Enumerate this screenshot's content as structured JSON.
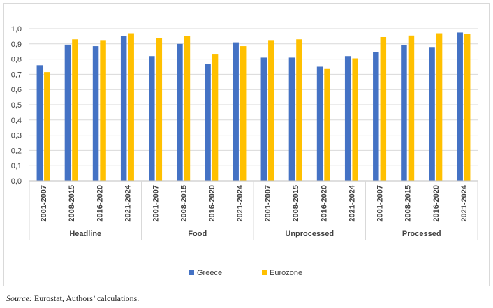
{
  "chart_data": {
    "type": "bar",
    "title": "",
    "xlabel": "",
    "ylabel": "",
    "ylim": [
      0,
      1.0
    ],
    "yticks": [
      "0,0",
      "0,1",
      "0,2",
      "0,3",
      "0,4",
      "0,5",
      "0,6",
      "0,7",
      "0,8",
      "0,9",
      "1,0"
    ],
    "grid": true,
    "legend_position": "bottom",
    "groups": [
      "Headline",
      "Food",
      "Unprocessed",
      "Processed"
    ],
    "periods": [
      "2001-2007",
      "2008-2015",
      "2016-2020",
      "2021-2024"
    ],
    "categories": [
      "2001-2007",
      "2008-2015",
      "2016-2020",
      "2021-2024",
      "2001-2007",
      "2008-2015",
      "2016-2020",
      "2021-2024",
      "2001-2007",
      "2008-2015",
      "2016-2020",
      "2021-2024",
      "2001-2007",
      "2008-2015",
      "2016-2020",
      "2021-2024"
    ],
    "series": [
      {
        "name": "Greece",
        "color": "#4472c4",
        "values": [
          0.76,
          0.895,
          0.885,
          0.95,
          0.82,
          0.9,
          0.77,
          0.91,
          0.81,
          0.81,
          0.75,
          0.82,
          0.845,
          0.89,
          0.875,
          0.975
        ]
      },
      {
        "name": "Eurozone",
        "color": "#ffc000",
        "values": [
          0.715,
          0.93,
          0.925,
          0.97,
          0.94,
          0.95,
          0.83,
          0.885,
          0.925,
          0.93,
          0.735,
          0.805,
          0.945,
          0.955,
          0.97,
          0.965
        ]
      }
    ]
  },
  "source": {
    "label": "Source:",
    "text": " Eurostat, Authors’ calculations."
  }
}
